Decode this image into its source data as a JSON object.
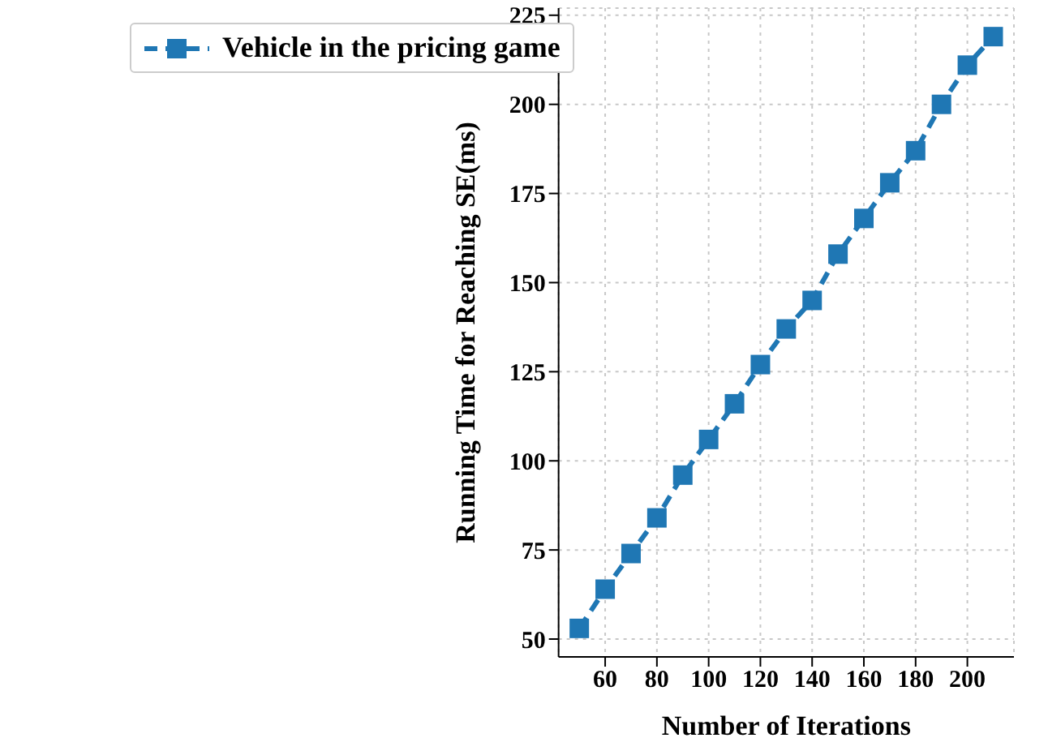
{
  "chart_data": {
    "type": "line",
    "xlabel": "Number of Iterations",
    "ylabel": "Running Time for Reaching SE(ms)",
    "x": [
      50,
      60,
      70,
      80,
      90,
      100,
      110,
      120,
      130,
      140,
      150,
      160,
      170,
      180,
      190,
      200,
      210
    ],
    "series": [
      {
        "name": "Vehicle in the pricing game",
        "color": "#1f77b4",
        "values": [
          53,
          64,
          74,
          84,
          96,
          106,
          116,
          127,
          137,
          145,
          158,
          168,
          178,
          187,
          200,
          211,
          219
        ]
      }
    ],
    "xlim": [
      42,
      218
    ],
    "xticks": [
      60,
      80,
      100,
      120,
      140,
      160,
      180,
      200
    ],
    "ylim": [
      45,
      227
    ],
    "yticks": [
      50,
      75,
      100,
      125,
      150,
      175,
      200,
      225
    ],
    "grid": true,
    "legend": "top left",
    "marker": "square",
    "line_style": "dashed"
  }
}
